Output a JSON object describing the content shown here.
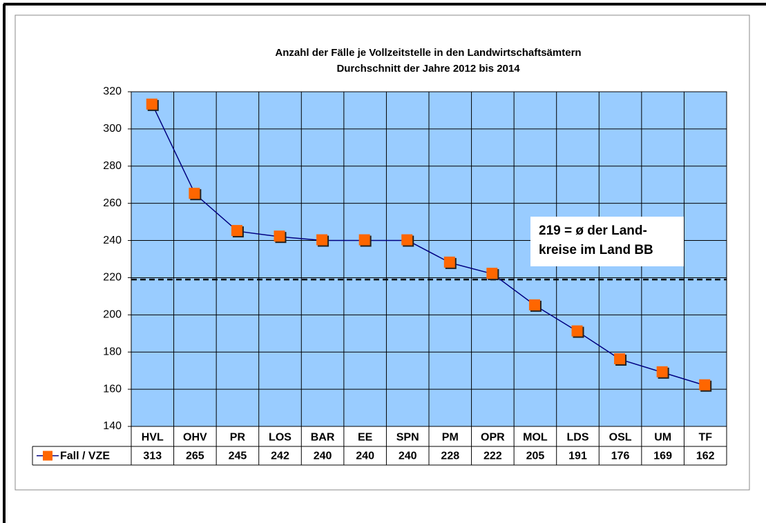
{
  "chart_data": {
    "type": "line",
    "title": "Anzahl der Fälle je Vollzeitstelle  in den Landwirtschaftsämtern",
    "subtitle": "Durchschnitt  der Jahre 2012 bis 2014",
    "categories": [
      "HVL",
      "OHV",
      "PR",
      "LOS",
      "BAR",
      "EE",
      "SPN",
      "PM",
      "OPR",
      "MOL",
      "LDS",
      "OSL",
      "UM",
      "TF"
    ],
    "series": [
      {
        "name": "Fall / VZE",
        "color": "#000080",
        "marker_color": "#ff6600",
        "values": [
          313,
          265,
          245,
          242,
          240,
          240,
          240,
          228,
          222,
          205,
          191,
          176,
          169,
          162
        ]
      }
    ],
    "ylim": [
      140,
      320
    ],
    "yticks": [
      140,
      160,
      180,
      200,
      220,
      240,
      260,
      280,
      300,
      320
    ],
    "grid": true,
    "plot_background": "#99ccff",
    "reference_value": 219,
    "annotation": [
      "219 = ø der Land-",
      "kreise im Land BB"
    ],
    "data_table": true
  }
}
